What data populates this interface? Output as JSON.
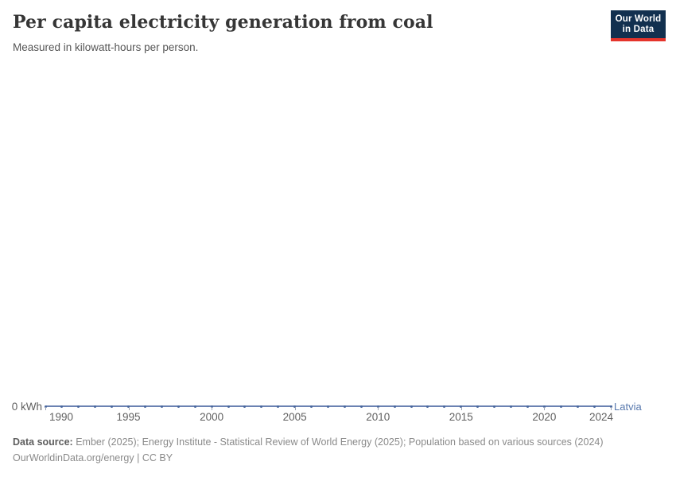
{
  "header": {
    "title": "Per capita electricity generation from coal",
    "subtitle": "Measured in kilowatt-hours per person.",
    "logo_line1": "Our World",
    "logo_line2": "in Data",
    "logo_bg_color": "#12304f",
    "logo_accent_color": "#e5342b"
  },
  "chart_data": {
    "type": "line",
    "title": "Per capita electricity generation from coal",
    "unit": "kilowatt-hours per person",
    "x": [
      1990,
      1991,
      1992,
      1993,
      1994,
      1995,
      1996,
      1997,
      1998,
      1999,
      2000,
      2001,
      2002,
      2003,
      2004,
      2005,
      2006,
      2007,
      2008,
      2009,
      2010,
      2011,
      2012,
      2013,
      2014,
      2015,
      2016,
      2017,
      2018,
      2019,
      2020,
      2021,
      2022,
      2023,
      2024
    ],
    "series": [
      {
        "name": "Latvia",
        "color": "#5778ad",
        "values": [
          0,
          0,
          0,
          0,
          0,
          0,
          0,
          0,
          0,
          0,
          0,
          0,
          0,
          0,
          0,
          0,
          0,
          0,
          0,
          0,
          0,
          0,
          0,
          0,
          0,
          0,
          0,
          0,
          0,
          0,
          0,
          0,
          0,
          0,
          0
        ]
      }
    ],
    "x_ticks": [
      1990,
      1995,
      2000,
      2005,
      2010,
      2015,
      2020,
      2024
    ],
    "y_axis_label": "0 kWh",
    "ylim": [
      0,
      0
    ],
    "grid": false,
    "legend": "end-of-line-label"
  },
  "footer": {
    "datasource_label": "Data source:",
    "datasource": "Ember (2025); Energy Institute - Statistical Review of World Energy (2025); Population based on various sources (2024)",
    "link": "OurWorldinData.org/energy",
    "separator": "|",
    "license": "CC BY"
  }
}
